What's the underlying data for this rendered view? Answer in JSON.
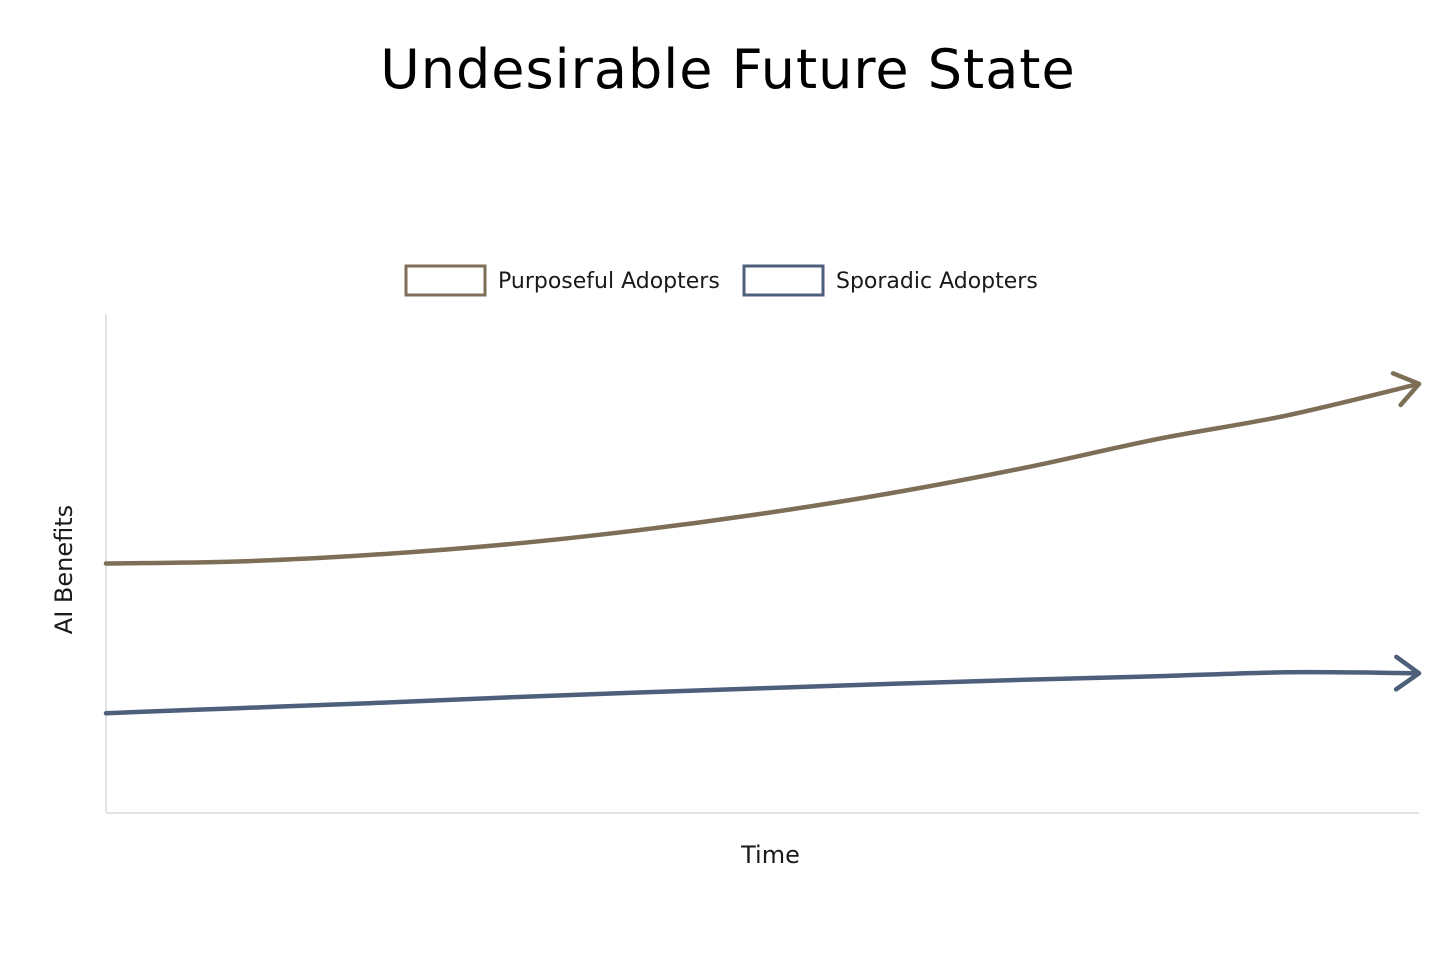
{
  "chart_data": {
    "type": "line",
    "title": "Undesirable Future State",
    "xlabel": "Time",
    "ylabel": "AI Benefits",
    "x_ticks": [],
    "y_ticks": [],
    "grid": false,
    "legend_position": "top-center",
    "axis_style": "light-gray, no tick marks",
    "line_end_markers": "arrowheads",
    "xlim": [
      0,
      100
    ],
    "ylim": [
      0,
      100
    ],
    "x": [
      0,
      10,
      20,
      30,
      40,
      50,
      60,
      70,
      80,
      90,
      100
    ],
    "series": [
      {
        "name": "Purposeful Adopters",
        "color": "#7d6e57",
        "values": [
          50,
          50.4,
          51.7,
          53.7,
          56.5,
          60.0,
          64.2,
          69.2,
          74.9,
          79.7,
          86
        ]
      },
      {
        "name": "Sporadic Adopters",
        "color": "#4d5f7b",
        "values": [
          20,
          21.0,
          22.0,
          23.1,
          24.1,
          25.0,
          25.9,
          26.7,
          27.4,
          28.2,
          28
        ]
      }
    ]
  }
}
